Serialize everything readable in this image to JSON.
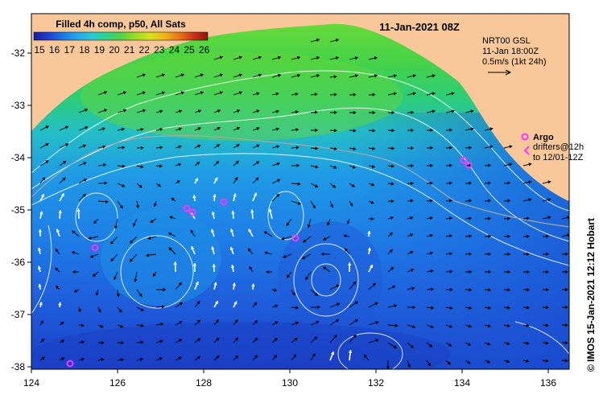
{
  "map": {
    "title": "11-Jan-2021 08Z",
    "colorbar": {
      "title": "Filled 4h comp, p50, All Sats",
      "ticks": [
        "15",
        "16",
        "17",
        "18",
        "19",
        "20",
        "21",
        "22",
        "23",
        "24",
        "25",
        "26"
      ],
      "colors": [
        "#1a1a9a",
        "#1f3fd1",
        "#1e78e6",
        "#22a6ee",
        "#2cc7d6",
        "#30d38a",
        "#52d24a",
        "#9bdc28",
        "#d6e21b",
        "#f2b51a",
        "#ea7619",
        "#c93418",
        "#8f1410"
      ]
    },
    "current_source": {
      "line1": "NRT00 GSL",
      "line2": "11-Jan 18:00Z",
      "line3": "0.5m/s (1kt 24h)"
    },
    "legend": {
      "argo_label": "Argo",
      "drifters_line1": "drifters@12h",
      "drifters_line2": "to 12/01-12Z",
      "argo_color": "#ff33ff"
    },
    "credit": "© IMOS 15-Jan-2021 12:12 Hobart",
    "axes": {
      "x_ticks": [
        "124",
        "126",
        "128",
        "130",
        "132",
        "134",
        "136"
      ],
      "y_ticks": [
        "-32",
        "-33",
        "-34",
        "-35",
        "-36",
        "-37",
        "-38"
      ]
    },
    "colors": {
      "land": "#f9c89a",
      "frame": "#000000"
    }
  }
}
